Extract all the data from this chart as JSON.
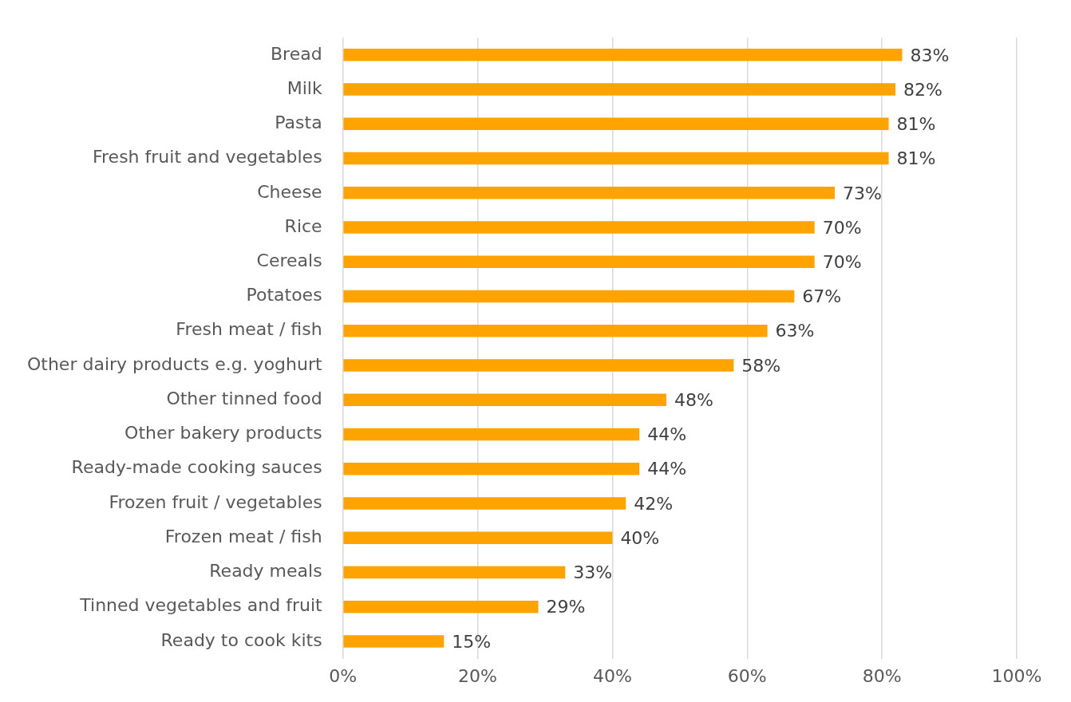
{
  "chart_data": {
    "type": "bar",
    "orientation": "horizontal",
    "categories": [
      "Bread",
      "Milk",
      "Pasta",
      "Fresh fruit and vegetables",
      "Cheese",
      "Rice",
      "Cereals",
      "Potatoes",
      "Fresh meat / fish",
      "Other dairy products e.g. yoghurt",
      "Other tinned food",
      "Other bakery products",
      "Ready-made cooking sauces",
      "Frozen fruit / vegetables",
      "Frozen meat / fish",
      "Ready meals",
      "Tinned vegetables and fruit",
      "Ready to cook kits"
    ],
    "values": [
      83,
      82,
      81,
      81,
      73,
      70,
      70,
      67,
      63,
      58,
      48,
      44,
      44,
      42,
      40,
      33,
      29,
      15
    ],
    "value_labels": [
      "83%",
      "82%",
      "81%",
      "81%",
      "73%",
      "70%",
      "70%",
      "67%",
      "63%",
      "58%",
      "48%",
      "44%",
      "44%",
      "42%",
      "40%",
      "33%",
      "29%",
      "15%"
    ],
    "color": "#ffa300",
    "xlim": [
      0,
      100
    ],
    "xticks": [
      {
        "value": 0,
        "label": "0%"
      },
      {
        "value": 20,
        "label": "20%"
      },
      {
        "value": 40,
        "label": "40%"
      },
      {
        "value": 60,
        "label": "60%"
      },
      {
        "value": 80,
        "label": "80%"
      },
      {
        "value": 100,
        "label": "100%"
      }
    ],
    "grid": "x",
    "legend": false
  }
}
